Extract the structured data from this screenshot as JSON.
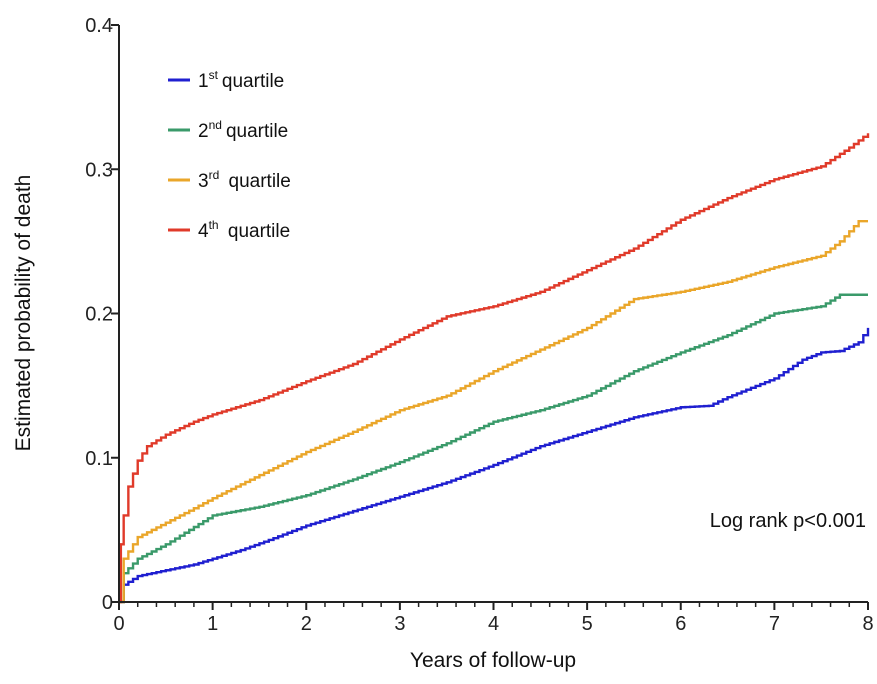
{
  "chart_data": {
    "type": "line",
    "title": "",
    "xlabel": "Years of follow-up",
    "ylabel": "Estimated probability of death",
    "xlim": [
      0,
      8
    ],
    "ylim": [
      0,
      0.4
    ],
    "xticks": [
      "0",
      "1",
      "2",
      "3",
      "4",
      "5",
      "6",
      "7",
      "8"
    ],
    "yticks": [
      "0",
      "0.1",
      "0.2",
      "0.3",
      "0.4"
    ],
    "grid": false,
    "legend_position": "top-left",
    "annotation": "Log rank p<0.001",
    "series": [
      {
        "name": "1st quartile",
        "label_base": "1",
        "label_sup": "st",
        "label_rest": "quartile",
        "color": "#1f1fd0",
        "x": [
          0,
          0.05,
          0.2,
          0.5,
          0.8,
          1.0,
          1.3,
          1.6,
          2.0,
          2.5,
          3.0,
          3.5,
          4.0,
          4.5,
          5.0,
          5.5,
          6.0,
          6.3,
          6.5,
          7.0,
          7.3,
          7.5,
          7.7,
          7.9,
          8.0
        ],
        "y": [
          0,
          0.012,
          0.018,
          0.022,
          0.026,
          0.03,
          0.036,
          0.043,
          0.053,
          0.063,
          0.073,
          0.083,
          0.095,
          0.108,
          0.118,
          0.128,
          0.135,
          0.136,
          0.142,
          0.155,
          0.168,
          0.173,
          0.174,
          0.18,
          0.19
        ]
      },
      {
        "name": "2nd quartile",
        "label_base": "2",
        "label_sup": "nd",
        "label_rest": "quartile",
        "color": "#3a9a6a",
        "x": [
          0,
          0.05,
          0.2,
          0.5,
          0.8,
          1.0,
          1.5,
          2.0,
          2.5,
          3.0,
          3.5,
          4.0,
          4.5,
          5.0,
          5.5,
          6.0,
          6.5,
          7.0,
          7.5,
          7.7,
          8.0
        ],
        "y": [
          0,
          0.02,
          0.03,
          0.04,
          0.052,
          0.06,
          0.066,
          0.074,
          0.085,
          0.097,
          0.11,
          0.125,
          0.133,
          0.143,
          0.16,
          0.173,
          0.185,
          0.2,
          0.205,
          0.213,
          0.213
        ]
      },
      {
        "name": "3rd quartile",
        "label_base": "3",
        "label_sup": "rd",
        "label_rest": " quartile",
        "color": "#eaa62a",
        "x": [
          0,
          0.05,
          0.2,
          0.5,
          0.8,
          1.0,
          1.5,
          2.0,
          2.5,
          3.0,
          3.5,
          4.0,
          4.5,
          5.0,
          5.5,
          6.0,
          6.5,
          7.0,
          7.5,
          7.7,
          7.9,
          8.0
        ],
        "y": [
          0,
          0.03,
          0.045,
          0.055,
          0.065,
          0.072,
          0.088,
          0.104,
          0.118,
          0.133,
          0.143,
          0.16,
          0.175,
          0.19,
          0.21,
          0.215,
          0.222,
          0.232,
          0.24,
          0.25,
          0.264,
          0.264
        ]
      },
      {
        "name": "4th quartile",
        "label_base": "4",
        "label_sup": "th",
        "label_rest": " quartile",
        "color": "#e03a2a",
        "x": [
          0,
          0.02,
          0.05,
          0.1,
          0.2,
          0.3,
          0.5,
          0.8,
          1.0,
          1.5,
          2.0,
          2.5,
          3.0,
          3.5,
          4.0,
          4.5,
          5.0,
          5.5,
          6.0,
          6.5,
          7.0,
          7.5,
          7.8,
          8.0
        ],
        "y": [
          0,
          0.04,
          0.06,
          0.08,
          0.098,
          0.108,
          0.116,
          0.125,
          0.13,
          0.14,
          0.153,
          0.165,
          0.182,
          0.198,
          0.205,
          0.215,
          0.23,
          0.245,
          0.265,
          0.28,
          0.293,
          0.302,
          0.315,
          0.325
        ]
      }
    ]
  }
}
